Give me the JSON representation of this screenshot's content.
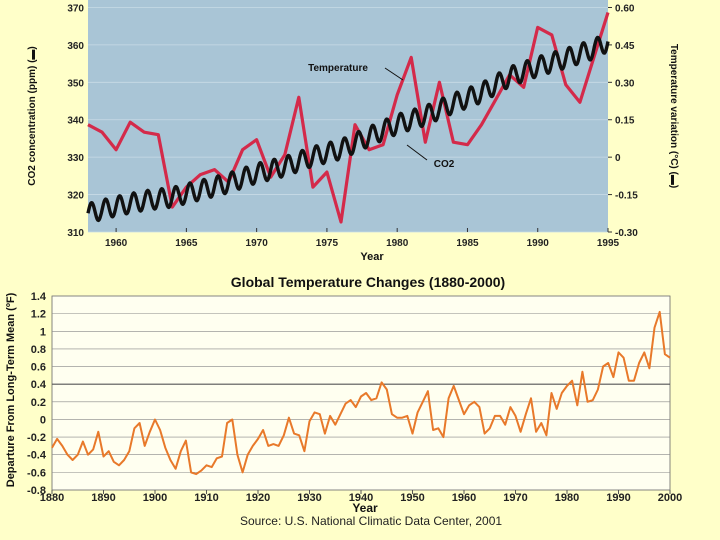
{
  "chart_data": [
    {
      "type": "line",
      "title": "",
      "xlabel": "Year",
      "ylabel": "CO2 concentration (ppm) (▬)",
      "y2label": "Temperature variation (°C) (▬)",
      "xlim": [
        1958,
        1995
      ],
      "ylim": [
        310,
        372
      ],
      "y2lim": [
        -0.3,
        0.63
      ],
      "x_ticks": [
        "1960",
        "1965",
        "1970",
        "1975",
        "1980",
        "1985",
        "1990",
        "1995"
      ],
      "y_ticks": [
        "310",
        "320",
        "330",
        "340",
        "350",
        "360",
        "370"
      ],
      "y2_ticks": [
        "-0.30",
        "-0.15",
        "0",
        "0.15",
        "0.30",
        "0.45",
        "0.60"
      ],
      "annotations": [
        "Temperature",
        "CO2"
      ],
      "series": [
        {
          "name": "Temperature",
          "axis": "right",
          "color": "#d42a4a",
          "x": [
            1958,
            1959,
            1960,
            1961,
            1962,
            1963,
            1964,
            1965,
            1966,
            1967,
            1968,
            1969,
            1970,
            1971,
            1972,
            1973,
            1974,
            1975,
            1976,
            1977,
            1978,
            1979,
            1980,
            1981,
            1982,
            1983,
            1984,
            1985,
            1986,
            1987,
            1988,
            1989,
            1990,
            1991,
            1992,
            1993,
            1994,
            1995
          ],
          "y": [
            0.13,
            0.1,
            0.03,
            0.14,
            0.1,
            0.09,
            -0.2,
            -0.12,
            -0.07,
            -0.05,
            -0.1,
            0.03,
            0.07,
            -0.08,
            0.01,
            0.24,
            -0.12,
            -0.06,
            -0.26,
            0.13,
            0.03,
            0.05,
            0.25,
            0.4,
            0.06,
            0.3,
            0.06,
            0.05,
            0.13,
            0.23,
            0.33,
            0.28,
            0.52,
            0.49,
            0.29,
            0.22,
            0.4,
            0.58
          ]
        },
        {
          "name": "CO2",
          "axis": "left",
          "color": "#111111",
          "x": [
            1958,
            1960,
            1962,
            1964,
            1966,
            1968,
            1970,
            1972,
            1974,
            1976,
            1978,
            1980,
            1982,
            1984,
            1986,
            1988,
            1990,
            1992,
            1994,
            1995
          ],
          "y": [
            315.0,
            316.9,
            318.4,
            319.3,
            321.2,
            323.1,
            325.7,
            327.5,
            330.2,
            332.1,
            335.5,
            338.8,
            341.1,
            344.4,
            347.2,
            351.5,
            354.2,
            356.4,
            358.9,
            360.9
          ]
        }
      ]
    },
    {
      "type": "line",
      "title": "Global Temperature Changes (1880-2000)",
      "xlabel": "Year",
      "ylabel": "Departure From Long-Term Mean (ºF)",
      "source": "Source: U.S. National Climatic Data Center, 2001",
      "xlim": [
        1880,
        2000
      ],
      "ylim": [
        -0.8,
        1.4
      ],
      "grid": true,
      "x_ticks": [
        "1880",
        "1890",
        "1900",
        "1910",
        "1920",
        "1930",
        "1940",
        "1950",
        "1960",
        "1970",
        "1980",
        "1990",
        "2000"
      ],
      "y_ticks": [
        "1.4",
        "1.2",
        "1",
        "0.8",
        "0.6",
        "0.4",
        "0.2",
        "0",
        "-0.2",
        "-0.4",
        "-0.6",
        "-0.8"
      ],
      "series": [
        {
          "name": "Global temperature departure",
          "color": "#e8792a",
          "x": [
            1880,
            1881,
            1882,
            1883,
            1884,
            1885,
            1886,
            1887,
            1888,
            1889,
            1890,
            1891,
            1892,
            1893,
            1894,
            1895,
            1896,
            1897,
            1898,
            1899,
            1900,
            1901,
            1902,
            1903,
            1904,
            1905,
            1906,
            1907,
            1908,
            1909,
            1910,
            1911,
            1912,
            1913,
            1914,
            1915,
            1916,
            1917,
            1918,
            1919,
            1920,
            1921,
            1922,
            1923,
            1924,
            1925,
            1926,
            1927,
            1928,
            1929,
            1930,
            1931,
            1932,
            1933,
            1934,
            1935,
            1936,
            1937,
            1938,
            1939,
            1940,
            1941,
            1942,
            1943,
            1944,
            1945,
            1946,
            1947,
            1948,
            1949,
            1950,
            1951,
            1952,
            1953,
            1954,
            1955,
            1956,
            1957,
            1958,
            1959,
            1960,
            1961,
            1962,
            1963,
            1964,
            1965,
            1966,
            1967,
            1968,
            1969,
            1970,
            1971,
            1972,
            1973,
            1974,
            1975,
            1976,
            1977,
            1978,
            1979,
            1980,
            1981,
            1982,
            1983,
            1984,
            1985,
            1986,
            1987,
            1988,
            1989,
            1990,
            1991,
            1992,
            1993,
            1994,
            1995,
            1996,
            1997,
            1998,
            1999,
            2000
          ],
          "y": [
            -0.32,
            -0.22,
            -0.3,
            -0.4,
            -0.46,
            -0.4,
            -0.25,
            -0.4,
            -0.34,
            -0.14,
            -0.42,
            -0.36,
            -0.48,
            -0.52,
            -0.46,
            -0.36,
            -0.1,
            -0.04,
            -0.3,
            -0.14,
            0.0,
            -0.12,
            -0.32,
            -0.46,
            -0.56,
            -0.36,
            -0.24,
            -0.6,
            -0.62,
            -0.58,
            -0.52,
            -0.54,
            -0.44,
            -0.42,
            -0.04,
            0.0,
            -0.4,
            -0.6,
            -0.4,
            -0.3,
            -0.22,
            -0.12,
            -0.3,
            -0.28,
            -0.3,
            -0.18,
            0.02,
            -0.16,
            -0.18,
            -0.36,
            -0.02,
            0.08,
            0.06,
            -0.16,
            0.04,
            -0.06,
            0.06,
            0.18,
            0.22,
            0.14,
            0.26,
            0.3,
            0.22,
            0.24,
            0.42,
            0.34,
            0.06,
            0.02,
            0.02,
            0.04,
            -0.16,
            0.08,
            0.2,
            0.32,
            -0.12,
            -0.1,
            -0.2,
            0.24,
            0.38,
            0.22,
            0.06,
            0.16,
            0.2,
            0.14,
            -0.16,
            -0.1,
            0.04,
            0.04,
            -0.06,
            0.14,
            0.04,
            -0.14,
            0.06,
            0.24,
            -0.14,
            -0.04,
            -0.18,
            0.3,
            0.12,
            0.3,
            0.38,
            0.44,
            0.16,
            0.54,
            0.2,
            0.22,
            0.34,
            0.6,
            0.64,
            0.48,
            0.76,
            0.7,
            0.44,
            0.44,
            0.64,
            0.76,
            0.58,
            1.04,
            1.22,
            0.74,
            0.7
          ]
        }
      ]
    }
  ]
}
